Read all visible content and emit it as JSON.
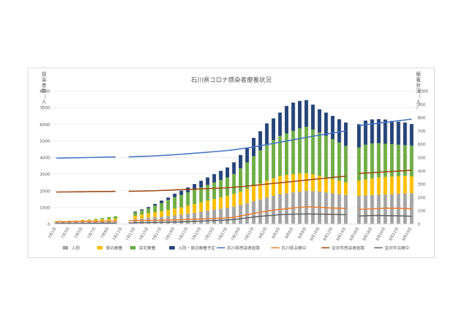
{
  "chart_data": {
    "type": "bar",
    "title": "石川県コロナ感染者療養状況",
    "ylabel_left": "感染者数（人）",
    "ylabel_right": "療養状況（人）",
    "ylim_left": [
      0,
      8000
    ],
    "ylim_right": [
      0,
      1000
    ],
    "yticks_left": [
      "0",
      "1000",
      "2000",
      "3000",
      "4000",
      "5000",
      "6000",
      "7000",
      "8000"
    ],
    "yticks_right": [
      "0",
      "100",
      "200",
      "300",
      "400",
      "500",
      "600",
      "700",
      "800",
      "900",
      "1000"
    ],
    "grid": true,
    "legend_position": "bottom",
    "x_dates": [
      "7月1日",
      "7月2日",
      "7月3日",
      "7月4日",
      "7月5日",
      "7月6日",
      "7月7日",
      "7月8日",
      "7月9日",
      "7月10日",
      "7月11日",
      "7月12日",
      "7月13日",
      "7月14日",
      "7月15日",
      "7月16日",
      "7月17日",
      "7月18日",
      "7月19日",
      "7月20日",
      "7月21日",
      "7月22日",
      "7月23日",
      "7月24日",
      "7月25日",
      "7月26日",
      "7月27日",
      "7月28日",
      "7月29日",
      "7月30日",
      "7月31日",
      "8月1日",
      "8月2日",
      "8月3日",
      "8月4日",
      "8月5日",
      "8月6日",
      "8月7日",
      "8月8日",
      "8月9日",
      "8月10日",
      "8月11日",
      "8月12日",
      "8月13日",
      "8月14日",
      "8月15日",
      "8月16日",
      "8月17日",
      "8月18日",
      "8月19日",
      "8月20日",
      "8月21日",
      "8月22日",
      "8月23日",
      "8月24日"
    ],
    "x_tick_labels": [
      "7月1日",
      "7月3日",
      "7月5日",
      "7月7日",
      "7月9日",
      "7月11日",
      "7月13日",
      "7月15日",
      "7月17日",
      "7月19日",
      "7月21日",
      "7月23日",
      "7月25日",
      "7月27日",
      "7月29日",
      "7月31日",
      "8月2日",
      "8月4日",
      "8月6日",
      "8月8日",
      "8月10日",
      "8月12日",
      "8月14日",
      "8月16日",
      "8月18日",
      "8月20日",
      "8月22日",
      "8月24日"
    ],
    "series": [
      {
        "name": "入院",
        "axis": "left",
        "type": "bar",
        "color": "#a5a5a5",
        "values": [
          120,
          120,
          130,
          140,
          150,
          160,
          170,
          180,
          190,
          200,
          null,
          null,
          300,
          340,
          380,
          420,
          440,
          480,
          520,
          560,
          620,
          680,
          740,
          800,
          860,
          920,
          980,
          1050,
          1150,
          1250,
          1380,
          1480,
          1600,
          1700,
          1800,
          1850,
          1900,
          1950,
          2000,
          1980,
          1950,
          1900,
          1850,
          1800,
          1750,
          null,
          1700,
          1720,
          1740,
          1760,
          1780,
          1800,
          1820,
          1840,
          1860
        ]
      },
      {
        "name": "宿泊療養",
        "axis": "left",
        "type": "bar",
        "color": "#ffc000",
        "values": [
          60,
          60,
          70,
          70,
          80,
          80,
          90,
          100,
          110,
          120,
          null,
          null,
          200,
          230,
          260,
          290,
          320,
          360,
          400,
          440,
          480,
          520,
          560,
          600,
          640,
          680,
          720,
          760,
          800,
          850,
          900,
          950,
          1000,
          1050,
          1100,
          1100,
          1100,
          1100,
          1050,
          1000,
          950,
          900,
          850,
          800,
          750,
          null,
          900,
          950,
          1000,
          1050,
          1050,
          1050,
          1050,
          1050,
          1000
        ]
      },
      {
        "name": "自宅療養",
        "axis": "left",
        "type": "bar",
        "color": "#70ad47",
        "values": [
          0,
          0,
          0,
          0,
          20,
          30,
          50,
          80,
          120,
          150,
          null,
          null,
          200,
          250,
          300,
          400,
          500,
          600,
          700,
          750,
          800,
          850,
          900,
          950,
          1000,
          1050,
          1100,
          1200,
          1400,
          1600,
          1800,
          2000,
          2200,
          2300,
          2400,
          2500,
          2600,
          2700,
          2800,
          2700,
          2600,
          2500,
          2400,
          2300,
          2200,
          null,
          2000,
          2100,
          2100,
          2050,
          2000,
          1950,
          1900,
          1850,
          1850
        ]
      },
      {
        "name": "入院・宿泊療養予定",
        "axis": "left",
        "type": "bar",
        "color": "#264478",
        "values": [
          0,
          0,
          0,
          0,
          0,
          0,
          0,
          0,
          0,
          0,
          null,
          null,
          50,
          60,
          80,
          100,
          150,
          150,
          200,
          250,
          300,
          350,
          400,
          450,
          500,
          550,
          600,
          700,
          800,
          900,
          1100,
          1150,
          1250,
          1300,
          1400,
          1650,
          1700,
          1650,
          1600,
          1500,
          1400,
          1400,
          1400,
          1400,
          1400,
          null,
          1400,
          1450,
          1450,
          1450,
          1450,
          1400,
          1380,
          1360,
          1300
        ]
      },
      {
        "name": "石川県感染者総数",
        "axis": "right",
        "type": "line",
        "color": "#4472c4",
        "values": [
          495,
          496,
          497,
          498,
          499,
          500,
          501,
          502,
          503,
          504,
          null,
          505,
          506,
          508,
          510,
          512,
          515,
          518,
          521,
          524,
          528,
          532,
          536,
          540,
          544,
          548,
          552,
          558,
          565,
          572,
          580,
          588,
          597,
          606,
          615,
          624,
          633,
          642,
          651,
          660,
          668,
          676,
          684,
          692,
          700,
          null,
          740,
          746,
          752,
          758,
          764,
          770,
          776,
          782,
          788
        ]
      },
      {
        "name": "石川県治療中",
        "axis": "right",
        "type": "line",
        "color": "#ed7d31",
        "values": [
          18,
          18,
          18,
          19,
          19,
          20,
          20,
          21,
          22,
          23,
          null,
          24,
          25,
          26,
          27,
          28,
          29,
          30,
          31,
          32,
          34,
          36,
          38,
          40,
          42,
          44,
          46,
          52,
          60,
          70,
          80,
          88,
          96,
          104,
          110,
          115,
          120,
          125,
          130,
          128,
          125,
          122,
          120,
          118,
          116,
          null,
          110,
          112,
          114,
          116,
          118,
          118,
          117,
          116,
          115
        ]
      },
      {
        "name": "金沢市感染者総数",
        "axis": "right",
        "type": "line",
        "color": "#9e480e",
        "values": [
          240,
          241,
          241,
          242,
          242,
          243,
          243,
          244,
          244,
          245,
          null,
          246,
          247,
          248,
          249,
          250,
          252,
          254,
          256,
          258,
          260,
          262,
          264,
          266,
          268,
          270,
          272,
          276,
          280,
          285,
          290,
          295,
          300,
          305,
          310,
          315,
          320,
          325,
          330,
          335,
          340,
          345,
          350,
          355,
          360,
          null,
          380,
          383,
          386,
          389,
          392,
          395,
          398,
          401,
          404
        ]
      },
      {
        "name": "金沢市治療中",
        "axis": "right",
        "type": "line",
        "color": "#636363",
        "values": [
          5,
          5,
          5,
          5,
          5,
          6,
          6,
          6,
          7,
          7,
          null,
          8,
          9,
          10,
          11,
          12,
          13,
          14,
          15,
          16,
          18,
          20,
          22,
          24,
          26,
          28,
          30,
          34,
          40,
          46,
          52,
          58,
          62,
          66,
          70,
          72,
          74,
          75,
          76,
          75,
          74,
          73,
          72,
          71,
          70,
          null,
          60,
          62,
          64,
          64,
          63,
          62,
          61,
          60,
          58
        ]
      }
    ]
  }
}
